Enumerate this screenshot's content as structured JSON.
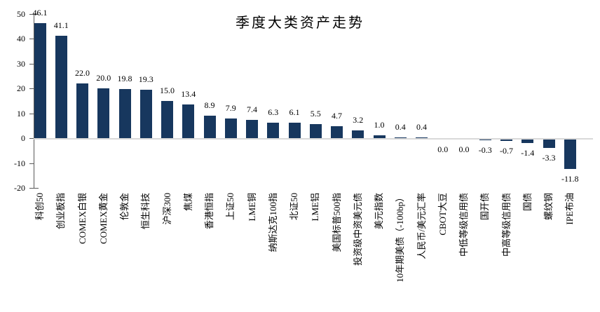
{
  "chart_data": {
    "type": "bar",
    "title": "季度大类资产走势",
    "categories": [
      "科创50",
      "创业板指",
      "COMEX白银",
      "COMEX黄金",
      "伦敦金",
      "恒生科技",
      "沪深300",
      "焦煤",
      "香港恒指",
      "上证50",
      "LME铜",
      "纳斯达克100指",
      "北证50",
      "LME铝",
      "美国标普500指",
      "投资级中资美元债",
      "美元指数",
      "10年期美债（-100bp）",
      "人民币/美元汇率",
      "CBOT大豆",
      "中低等级信用债",
      "国开债",
      "中高等级信用债",
      "国债",
      "螺纹钢",
      "IPE布油"
    ],
    "values": [
      46.1,
      41.1,
      22.0,
      20.0,
      19.8,
      19.3,
      15.0,
      13.4,
      8.9,
      7.9,
      7.4,
      6.3,
      6.1,
      5.5,
      4.7,
      3.2,
      1.0,
      0.4,
      0.4,
      0.0,
      0.0,
      -0.3,
      -0.7,
      -1.4,
      -3.3,
      -11.8
    ],
    "value_label_decimals": 1,
    "xlabel": "",
    "ylabel": "",
    "ylim": [
      -20,
      50
    ],
    "yticks": [
      50,
      40,
      30,
      20,
      10,
      0,
      -10,
      -20
    ],
    "grid": false,
    "legend_position": "none",
    "bar_color": "#17375E",
    "zero_line_color": "#D9D9D9",
    "axis_color": "#595959"
  }
}
